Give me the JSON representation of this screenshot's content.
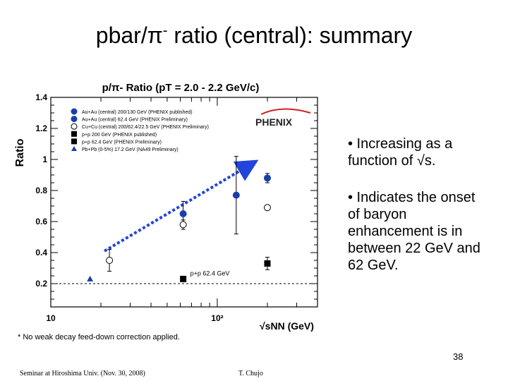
{
  "slide": {
    "title_main": "pbar/π",
    "title_sup": "-",
    "title_rest": " ratio (central): summary",
    "bullet1": "• Increasing as a function of √s.",
    "bullet2": "• Indicates the onset of baryon enhancement is in between 22 GeV and 62 GeV.",
    "footnote": "* No weak decay feed-down correction applied.",
    "page_number": "38",
    "footer_left": "Seminar at Hiroshima Univ. (Nov. 30, 2008)",
    "footer_center": "T. Chujo"
  },
  "chart_data": {
    "type": "scatter",
    "title": "p/π- Ratio (pT = 2.0 - 2.2 GeV/c)",
    "ylabel": "Ratio",
    "xlabel": "√sNN (GeV)",
    "xscale": "log",
    "xlim": [
      10,
      400
    ],
    "ylim": [
      0.05,
      1.4
    ],
    "x_tick_labels": [
      "10",
      "10²"
    ],
    "y_tick_labels": [
      "0.2",
      "0.4",
      "0.6",
      "0.8",
      "1",
      "1.2",
      "1.4"
    ],
    "y_ticks": [
      0.2,
      0.4,
      0.6,
      0.8,
      1.0,
      1.2,
      1.4
    ],
    "logo_text": "PHENIX",
    "annotation": "p+p 62.4 GeV",
    "reference_line_y": 0.2,
    "legend_position": "top-left",
    "series": [
      {
        "name": "Au+Au (central) 200/130 GeV (PHENIX published)",
        "marker": "filled-circle",
        "points": [
          {
            "x": 130,
            "y": 0.77
          },
          {
            "x": 200,
            "y": 0.88
          }
        ],
        "err": [
          0.25,
          0.03
        ]
      },
      {
        "name": "Au+Au (central) 62.4 GeV (PHENIX Preliminary)",
        "marker": "filled-circle",
        "points": [
          {
            "x": 62.4,
            "y": 0.65
          }
        ],
        "err": [
          0.08
        ]
      },
      {
        "name": "Cu+Cu (central) 200/62.4/22.5 GeV (PHENIX Preliminary)",
        "marker": "open-circle",
        "points": [
          {
            "x": 22.5,
            "y": 0.35
          },
          {
            "x": 62.4,
            "y": 0.58
          },
          {
            "x": 200,
            "y": 0.69
          }
        ],
        "err": [
          0.07,
          0.03,
          0.0
        ]
      },
      {
        "name": "p+p 200 GeV (PHENIX published)",
        "marker": "filled-square",
        "points": [
          {
            "x": 200,
            "y": 0.33
          }
        ],
        "err": [
          0.04
        ]
      },
      {
        "name": "p+p 62.4 GeV (PHENIX Preliminary)",
        "marker": "filled-square",
        "points": [
          {
            "x": 62.4,
            "y": 0.23
          }
        ],
        "err": [
          0.0
        ]
      },
      {
        "name": "Pb+Pb (0-5%) 17.2 GeV (NA49 Preliminary)",
        "marker": "filled-triangle",
        "points": [
          {
            "x": 17.2,
            "y": 0.23
          }
        ],
        "err": [
          0.0
        ]
      }
    ],
    "trend_arrow": {
      "from": {
        "x": 21,
        "y": 0.41
      },
      "to": {
        "x": 160,
        "y": 0.97
      }
    }
  }
}
